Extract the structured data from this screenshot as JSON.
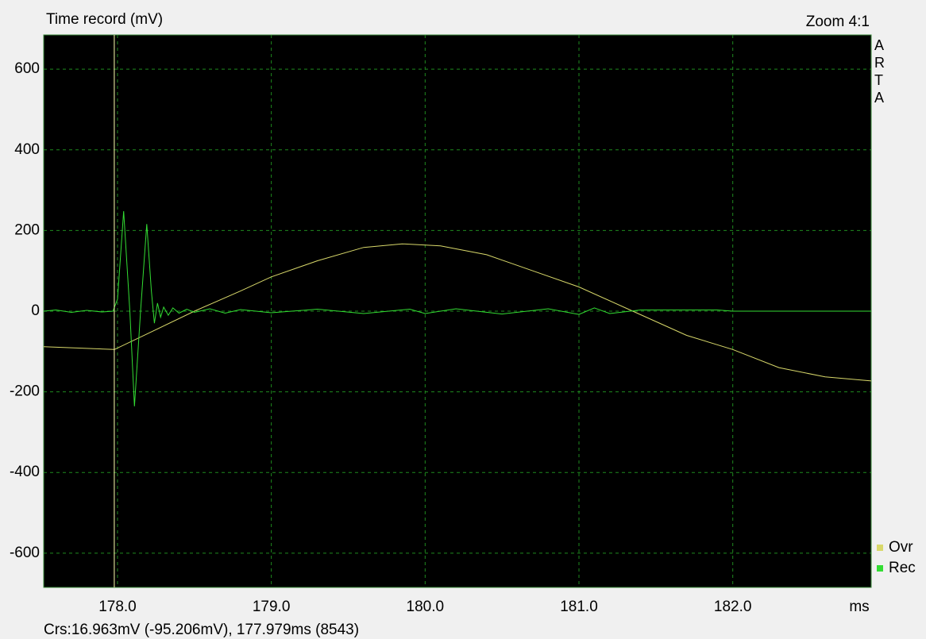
{
  "chart_data": {
    "type": "line",
    "title": "Time record (mV)",
    "zoom": "Zoom 4:1",
    "brand": "ARTA",
    "x_unit": "ms",
    "status": "Crs:16.963mV (-95.206mV), 177.979ms (8543)",
    "cursor_x": 177.979,
    "cursor_color": "#ffffb0",
    "xlim": [
      177.52,
      182.9
    ],
    "ylim": [
      -685,
      685
    ],
    "xticks": [
      {
        "value": 178,
        "label": "178.0"
      },
      {
        "value": 179,
        "label": "179.0"
      },
      {
        "value": 180,
        "label": "180.0"
      },
      {
        "value": 181,
        "label": "181.0"
      },
      {
        "value": 182,
        "label": "182.0"
      }
    ],
    "yticks": [
      -600,
      -400,
      -200,
      0,
      200,
      400,
      600
    ],
    "grid": true,
    "legend": "bottom-right",
    "series": [
      {
        "name": "Ovr",
        "color": "#d8d86a",
        "x": [
          177.52,
          177.98,
          178.2,
          178.5,
          178.8,
          179.0,
          179.3,
          179.6,
          179.85,
          180.1,
          180.4,
          180.7,
          181.0,
          181.35,
          181.7,
          182.0,
          182.3,
          182.6,
          182.9
        ],
        "values": [
          -88,
          -95,
          -55,
          0,
          50,
          85,
          125,
          158,
          167,
          162,
          140,
          100,
          60,
          0,
          -60,
          -95,
          -140,
          -163,
          -173
        ]
      },
      {
        "name": "Rec",
        "color": "#33dd33",
        "x": [
          177.52,
          177.6,
          177.7,
          177.8,
          177.9,
          177.97,
          178.0,
          178.04,
          178.08,
          178.11,
          178.15,
          178.19,
          178.22,
          178.24,
          178.26,
          178.28,
          178.3,
          178.33,
          178.36,
          178.4,
          178.45,
          178.5,
          178.6,
          178.7,
          178.8,
          179.0,
          179.3,
          179.6,
          179.9,
          180.0,
          180.2,
          180.5,
          180.8,
          181.0,
          181.1,
          181.2,
          181.4,
          181.9,
          182.0,
          182.9
        ],
        "values": [
          0,
          3,
          -3,
          2,
          -2,
          0,
          30,
          248,
          0,
          -236,
          0,
          216,
          50,
          -30,
          20,
          -15,
          10,
          -10,
          8,
          -5,
          5,
          -3,
          6,
          -5,
          4,
          -4,
          5,
          -6,
          5,
          -6,
          6,
          -7,
          6,
          -8,
          8,
          -6,
          3,
          3,
          0,
          0
        ]
      }
    ]
  }
}
